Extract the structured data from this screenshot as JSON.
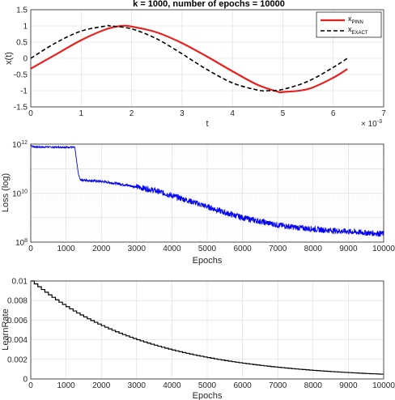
{
  "chart_data": [
    {
      "type": "line",
      "title": "k = 1000,  number of epochs = 10000",
      "xlabel": "t",
      "ylabel": "x(t)",
      "x_exponent_label": "× 10",
      "x_exponent_power": "-3",
      "xlim": [
        0,
        7
      ],
      "ylim": [
        -1.5,
        1.5
      ],
      "xticks": [
        "0",
        "1",
        "2",
        "3",
        "4",
        "5",
        "6",
        "7"
      ],
      "yticks": [
        "-1.5",
        "-1",
        "-0.5",
        "0",
        "0.5",
        "1",
        "1.5"
      ],
      "grid": true,
      "legend_position": "top-right",
      "series": [
        {
          "name": "x",
          "name_subscript": "PINN",
          "color": "#e8201e",
          "style": "solid",
          "x": [
            0,
            0.5,
            1.0,
            1.5,
            1.8,
            2.0,
            2.5,
            3.0,
            3.5,
            4.0,
            4.5,
            4.9,
            5.0,
            5.5,
            6.0,
            6.28
          ],
          "y": [
            -0.32,
            0.12,
            0.56,
            0.9,
            1.0,
            0.98,
            0.8,
            0.47,
            0.05,
            -0.4,
            -0.82,
            -1.03,
            -1.04,
            -0.95,
            -0.6,
            -0.33
          ]
        },
        {
          "name": "x",
          "name_subscript": "EXACT",
          "color": "#000000",
          "style": "dashed",
          "x": [
            0,
            0.5,
            1.0,
            1.5,
            1.57,
            2.0,
            2.5,
            3.0,
            3.14,
            3.5,
            4.0,
            4.5,
            4.71,
            5.0,
            5.5,
            6.0,
            6.28
          ],
          "y": [
            0,
            0.48,
            0.84,
            1.0,
            1.0,
            0.91,
            0.6,
            0.14,
            0,
            -0.35,
            -0.76,
            -0.98,
            -1.0,
            -0.96,
            -0.71,
            -0.28,
            0
          ]
        }
      ]
    },
    {
      "type": "line",
      "title": "",
      "xlabel": "Epochs",
      "ylabel": "Loss (log)",
      "xlim": [
        0,
        10000
      ],
      "ylim_log": [
        100000000.0,
        1000000000000.0
      ],
      "xticks": [
        "0",
        "1000",
        "2000",
        "3000",
        "4000",
        "5000",
        "6000",
        "7000",
        "8000",
        "9000",
        "10000"
      ],
      "yticks": [
        {
          "base": "10",
          "exp": "12",
          "value": 1000000000000.0
        },
        {
          "base": "10",
          "exp": "10",
          "value": 10000000000.0
        },
        {
          "base": "10",
          "exp": "8",
          "value": 100000000.0
        }
      ],
      "scale": "log",
      "grid": true,
      "series": [
        {
          "color": "#0000ee",
          "x": [
            0,
            50,
            200,
            600,
            1000,
            1250,
            1300,
            1350,
            1400,
            1500,
            2000,
            2500,
            3000,
            3500,
            4000,
            4500,
            5000,
            5500,
            6000,
            6500,
            7000,
            7500,
            8000,
            8500,
            9000,
            9500,
            10000
          ],
          "y": [
            950000000000.0,
            800000000000.0,
            760000000000.0,
            760000000000.0,
            750000000000.0,
            740000000000.0,
            200000000000.0,
            60000000000.0,
            36000000000.0,
            34000000000.0,
            30000000000.0,
            24000000000.0,
            18000000000.0,
            13000000000.0,
            8000000000.0,
            4800000000.0,
            2800000000.0,
            1600000000.0,
            1000000000.0,
            700000000.0,
            500000000.0,
            400000000.0,
            340000000.0,
            300000000.0,
            270000000.0,
            240000000.0,
            220000000.0
          ]
        }
      ]
    },
    {
      "type": "line",
      "title": "",
      "xlabel": "Epochs",
      "ylabel": "LearnRate",
      "xlim": [
        0,
        10000
      ],
      "ylim": [
        0,
        0.01
      ],
      "xticks": [
        "0",
        "1000",
        "2000",
        "3000",
        "4000",
        "5000",
        "6000",
        "7000",
        "8000",
        "9000",
        "10000"
      ],
      "yticks": [
        "0",
        "0.002",
        "0.004",
        "0.006",
        "0.008",
        "0.01"
      ],
      "grid": true,
      "series": [
        {
          "color": "#000000",
          "style": "stairs",
          "step": 100,
          "decay_factor": 0.97,
          "x": [
            0,
            1000,
            2000,
            3000,
            4000,
            5000,
            6000,
            7000,
            8000,
            9000,
            10000
          ],
          "y": [
            0.01,
            0.0074,
            0.0054,
            0.004,
            0.003,
            0.0022,
            0.0016,
            0.0012,
            0.00088,
            0.00065,
            0.00048
          ]
        }
      ]
    }
  ]
}
